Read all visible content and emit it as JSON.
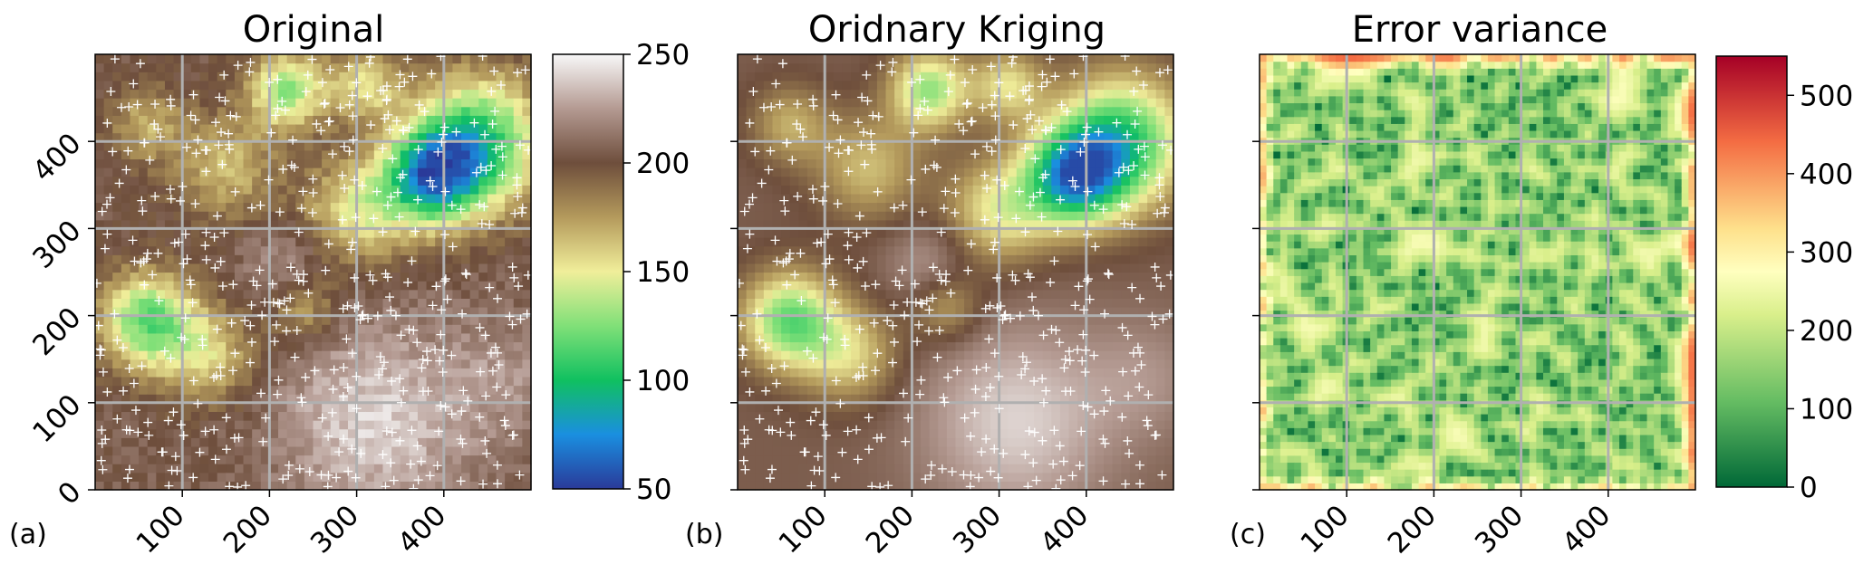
{
  "chart_data": [
    {
      "type": "heatmap",
      "panel_label": "(a)",
      "title": "Original",
      "xlim": [
        0,
        500
      ],
      "ylim": [
        0,
        500
      ],
      "xticks": [
        100,
        200,
        300,
        400
      ],
      "xtick_labels": [
        "100",
        "200",
        "300",
        "400"
      ],
      "yticks": [
        0,
        100,
        200,
        300,
        400
      ],
      "ytick_labels": [
        "0",
        "100",
        "200",
        "300",
        "400"
      ],
      "grid": true,
      "markers": "white plus signs at sampled locations",
      "colorbar": {
        "min": 50,
        "max": 250,
        "ticks": [
          50,
          100,
          150,
          200,
          250
        ],
        "tick_labels": [
          "50",
          "100",
          "150",
          "200",
          "250"
        ],
        "colormap": "terrain-like",
        "color_stops": [
          {
            "value": 50,
            "color": "#2a3a99"
          },
          {
            "value": 75,
            "color": "#1a8fe0"
          },
          {
            "value": 100,
            "color": "#10c060"
          },
          {
            "value": 125,
            "color": "#80e078"
          },
          {
            "value": 150,
            "color": "#f0ee9a"
          },
          {
            "value": 175,
            "color": "#b49a5c"
          },
          {
            "value": 200,
            "color": "#6e4e3c"
          },
          {
            "value": 225,
            "color": "#b49a92"
          },
          {
            "value": 250,
            "color": "#f8f8f8"
          }
        ]
      }
    },
    {
      "type": "heatmap",
      "panel_label": "(b)",
      "title": "Oridnary Kriging",
      "xlim": [
        0,
        500
      ],
      "ylim": [
        0,
        500
      ],
      "xticks": [
        100,
        200,
        300,
        400
      ],
      "xtick_labels": [
        "100",
        "200",
        "300",
        "400"
      ],
      "yticks": [
        0,
        100,
        200,
        300,
        400
      ],
      "grid": true,
      "markers": "white plus signs at sampled locations",
      "shared_colorbar_with": "(a)"
    },
    {
      "type": "heatmap",
      "panel_label": "(c)",
      "title": "Error variance",
      "xlim": [
        0,
        500
      ],
      "ylim": [
        0,
        500
      ],
      "xticks": [
        100,
        200,
        300,
        400
      ],
      "xtick_labels": [
        "100",
        "200",
        "300",
        "400"
      ],
      "yticks": [
        0,
        100,
        200,
        300,
        400
      ],
      "grid": true,
      "colorbar": {
        "min": 0,
        "max": 550,
        "ticks": [
          0,
          100,
          200,
          300,
          400,
          500
        ],
        "tick_labels": [
          "0",
          "100",
          "200",
          "300",
          "400",
          "500"
        ],
        "colormap": "RdYlGn_r",
        "color_stops": [
          {
            "value": 0,
            "color": "#006837"
          },
          {
            "value": 110,
            "color": "#66bd63"
          },
          {
            "value": 220,
            "color": "#d9ef8b"
          },
          {
            "value": 275,
            "color": "#ffffbf"
          },
          {
            "value": 330,
            "color": "#fee08b"
          },
          {
            "value": 440,
            "color": "#f46d43"
          },
          {
            "value": 550,
            "color": "#a50026"
          }
        ]
      }
    }
  ]
}
